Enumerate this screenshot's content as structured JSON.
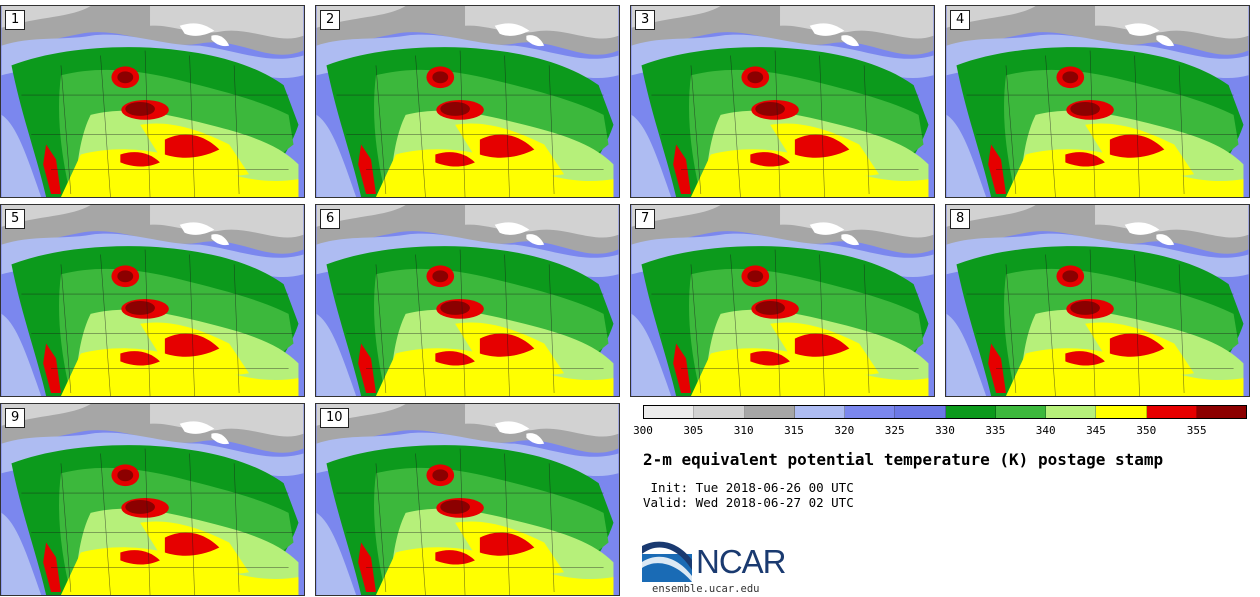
{
  "panels": [
    {
      "label": "1"
    },
    {
      "label": "2"
    },
    {
      "label": "3"
    },
    {
      "label": "4"
    },
    {
      "label": "5"
    },
    {
      "label": "6"
    },
    {
      "label": "7"
    },
    {
      "label": "8"
    },
    {
      "label": "9"
    },
    {
      "label": "10"
    }
  ],
  "colorbar": {
    "ticks": [
      "300",
      "305",
      "310",
      "315",
      "320",
      "325",
      "330",
      "335",
      "340",
      "345",
      "350",
      "355"
    ],
    "colors": [
      "#ececec",
      "#d2d2d2",
      "#a6a6a6",
      "#aebcf2",
      "#7b87ee",
      "#6c78e6",
      "#0c9a1c",
      "#3cb83c",
      "#b6f07a",
      "#ffff00",
      "#e60000",
      "#8c0000"
    ]
  },
  "title": "2-m equivalent potential temperature (K) postage stamp",
  "init_text": " Init: Tue 2018-06-26 00 UTC",
  "valid_text": "Valid: Wed 2018-06-27 02 UTC",
  "logo": {
    "brand": "NCAR",
    "icon": "ncar-swoosh-icon"
  },
  "url": "ensemble.ucar.edu"
}
